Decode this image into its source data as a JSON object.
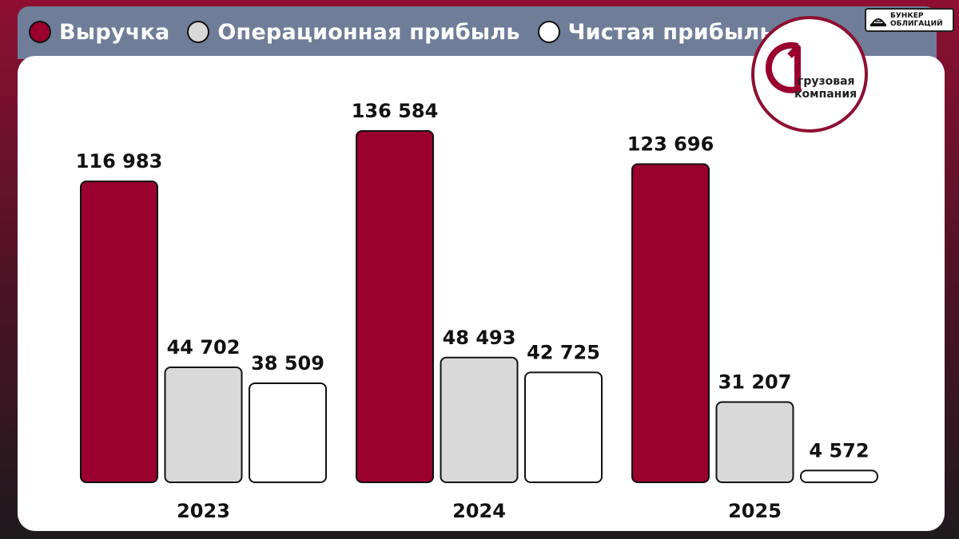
{
  "legend": {
    "revenue": "Выручка",
    "operating_profit": "Операционная прибыль",
    "net_profit": "Чистая прибыль"
  },
  "brand": {
    "line1": "БУНКЕР",
    "line2": "ОБЛИГАЦИЙ"
  },
  "company_logo": {
    "line1": "грузовая",
    "line2": "компания",
    "mark": "1"
  },
  "colors": {
    "revenue": "#99002e",
    "operating_profit": "#d9d9d9",
    "net_profit": "#ffffff",
    "header": "#6f7d99",
    "accent": "#8e0f32"
  },
  "chart_data": {
    "type": "bar",
    "categories": [
      "2023",
      "2024",
      "2025"
    ],
    "series": [
      {
        "name": "Выручка",
        "values": [
          116983,
          136584,
          123696
        ],
        "labels": [
          "116 983",
          "136 584",
          "123 696"
        ]
      },
      {
        "name": "Операционная прибыль",
        "values": [
          44702,
          48493,
          31207
        ],
        "labels": [
          "44 702",
          "48 493",
          "31 207"
        ]
      },
      {
        "name": "Чистая прибыль",
        "values": [
          38509,
          42725,
          4572
        ],
        "labels": [
          "38 509",
          "42 725",
          "4 572"
        ]
      }
    ],
    "title": "",
    "xlabel": "",
    "ylabel": "",
    "ylim": [
      0,
      136584
    ],
    "grid": false,
    "legend_position": "top-left"
  }
}
